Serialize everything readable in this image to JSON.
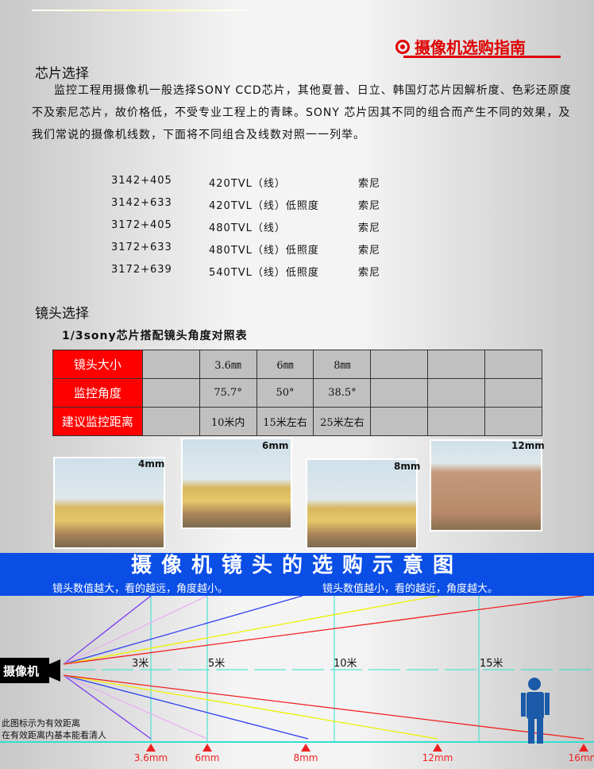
{
  "header": {
    "title": "摄像机选购指南",
    "icon": "target-icon",
    "accent": "#e00000"
  },
  "chip": {
    "heading": "芯片选择",
    "paragraph": "监控工程用摄像机一般选择SONY CCD芯片，其他夏普、日立、韩国灯芯片因解析度、色彩还原度不及索尼芯片，故价格低，不受专业工程上的青睐。SONY 芯片因其不同的组合而产生不同的效果，及我们常说的摄像机线数，下面将不同组合及线数对照一一列举。",
    "rows": [
      {
        "combo": "3142+405",
        "lines": "420TVL（线）",
        "brand": "索尼"
      },
      {
        "combo": "3142+633",
        "lines": "420TVL（线）低照度",
        "brand": "索尼"
      },
      {
        "combo": "3172+405",
        "lines": "480TVL（线）",
        "brand": "索尼"
      },
      {
        "combo": "3172+633",
        "lines": "480TVL（线）低照度",
        "brand": "索尼"
      },
      {
        "combo": "3172+639",
        "lines": "540TVL（线）低照度",
        "brand": "索尼"
      }
    ]
  },
  "lens": {
    "heading": "镜头选择",
    "table_title": "1/3sony芯片搭配镜头角度对照表",
    "table": [
      {
        "header": "镜头大小",
        "cells": [
          "",
          "3.6㎜",
          "6㎜",
          "8㎜",
          "",
          "",
          ""
        ]
      },
      {
        "header": "监控角度",
        "cells": [
          "",
          "75.7°",
          "50°",
          "38.5°",
          "",
          "",
          ""
        ]
      },
      {
        "header": "建议监控距离",
        "cells": [
          "",
          "10米内",
          "15米左右",
          "25米左右",
          "",
          "",
          ""
        ]
      }
    ],
    "photos": [
      "4mm",
      "6mm",
      "8mm",
      "12mm"
    ]
  },
  "diagram": {
    "title": "摄像机镜头的选购示意图",
    "left_note": "镜头数值越大，看的越远，角度越小。",
    "right_note": "镜头数值越小，看的越近，角度越大。",
    "camera_label": "摄像机",
    "distances": [
      "3米",
      "5米",
      "10米",
      "15米"
    ],
    "lenses": [
      "3.6mm",
      "6mm",
      "8mm",
      "12mm",
      "16mm"
    ],
    "caption": [
      "此图标示为有效距离",
      "在有效距离内基本能看清人"
    ],
    "colors": {
      "banner": "#0a4ee6",
      "3.6mm": "#7a3cf0",
      "6mm": "#e8b0f0",
      "8mm": "#3040f0",
      "12mm": "#f0f000",
      "16mm": "#f02020",
      "guide": "#30e0d0",
      "person": "#1a5aa8"
    }
  }
}
